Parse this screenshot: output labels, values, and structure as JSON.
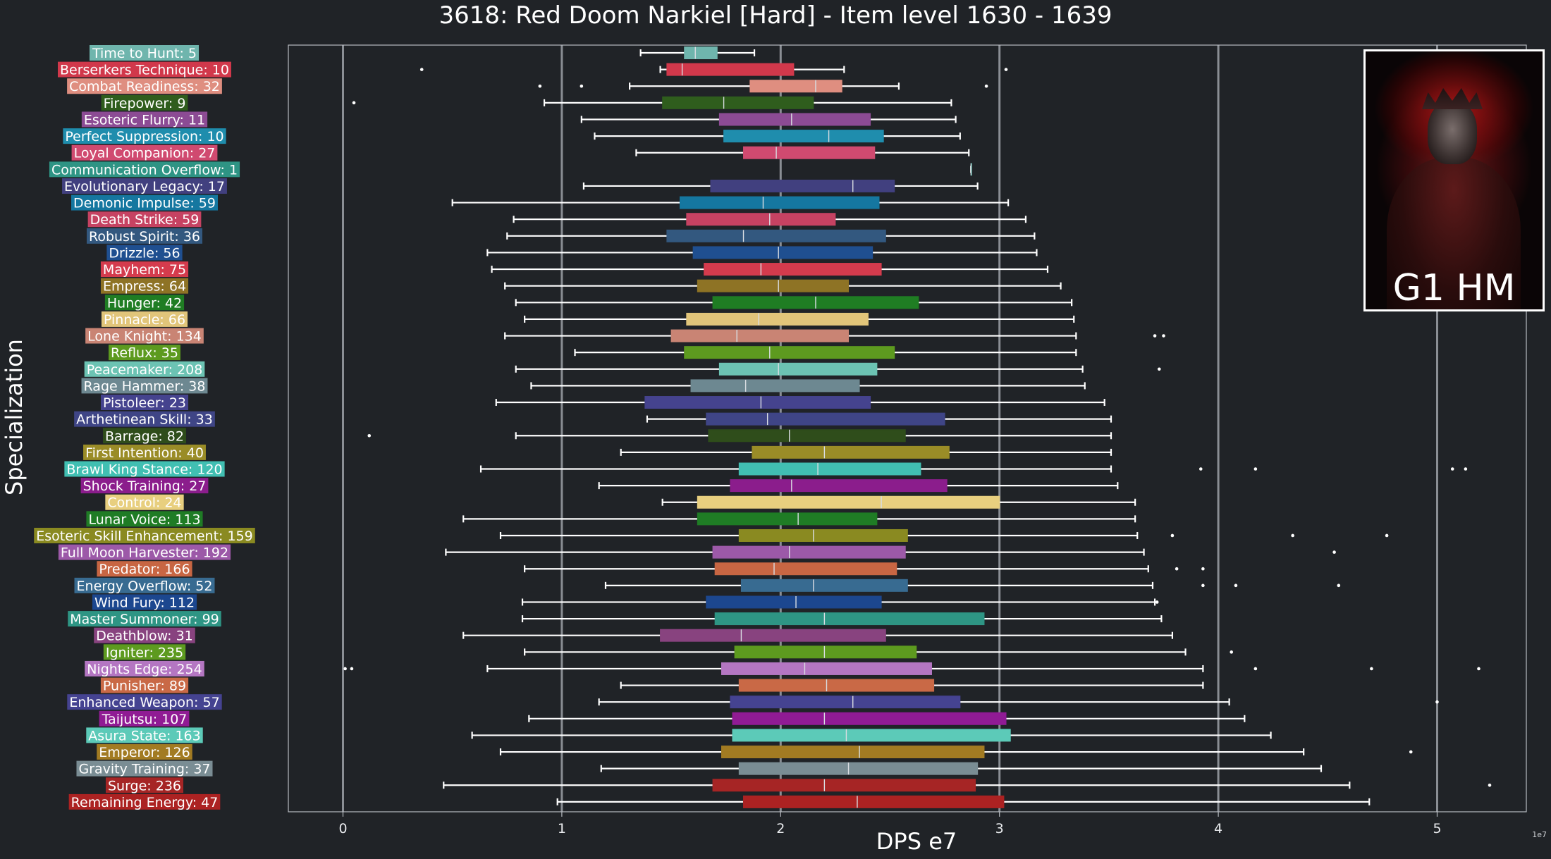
{
  "title": "3618: Red Doom Narkiel [Hard] - Item level 1630 - 1639",
  "inset": {
    "caption": "G1 HM",
    "icon": "boss-portrait-image"
  },
  "chart_data": {
    "type": "box",
    "orientation": "horizontal",
    "xlabel": "DPS e7",
    "ylabel": "Specialization",
    "x_offset_text": "1e7",
    "xlim": [
      -0.25,
      5.5
    ],
    "xticks": [
      0,
      1,
      2,
      3,
      4,
      5
    ],
    "vertical_gridlines_at": [
      0,
      1,
      2,
      3,
      4,
      5
    ],
    "colors": {
      "background": "#202327",
      "axes": "#b8bcc2",
      "whisker": "#ffffff",
      "gridline": "#8a8e94"
    },
    "series": [
      {
        "name": "Time to Hunt: 5",
        "color": "#6fb5ad",
        "whisker_low": 1.36,
        "q1": 1.56,
        "median": 1.61,
        "q3": 1.71,
        "whisker_high": 1.88,
        "outliers": []
      },
      {
        "name": "Berserkers Technique: 10",
        "color": "#d1384b",
        "whisker_low": 1.45,
        "q1": 1.48,
        "median": 1.55,
        "q3": 2.06,
        "whisker_high": 2.29,
        "outliers": [
          0.36,
          3.03
        ]
      },
      {
        "name": "Combat Readiness: 32",
        "color": "#df8e80",
        "whisker_low": 1.31,
        "q1": 1.86,
        "median": 2.16,
        "q3": 2.28,
        "whisker_high": 2.54,
        "outliers": [
          0.9,
          1.09,
          2.94
        ]
      },
      {
        "name": "Firepower: 9",
        "color": "#2f5d1d",
        "whisker_low": 0.92,
        "q1": 1.46,
        "median": 1.74,
        "q3": 2.15,
        "whisker_high": 2.78,
        "outliers": [
          0.05
        ]
      },
      {
        "name": "Esoteric Flurry: 11",
        "color": "#8c4b94",
        "whisker_low": 1.09,
        "q1": 1.72,
        "median": 2.05,
        "q3": 2.41,
        "whisker_high": 2.8,
        "outliers": []
      },
      {
        "name": "Perfect Suppression: 10",
        "color": "#1f8dad",
        "whisker_low": 1.15,
        "q1": 1.74,
        "median": 2.22,
        "q3": 2.47,
        "whisker_high": 2.82,
        "outliers": []
      },
      {
        "name": "Loyal Companion: 27",
        "color": "#d04a70",
        "whisker_low": 1.34,
        "q1": 1.83,
        "median": 1.98,
        "q3": 2.43,
        "whisker_high": 2.86,
        "outliers": []
      },
      {
        "name": "Communication Overflow: 1",
        "color": "#2e9484",
        "whisker_low": 2.87,
        "q1": 2.87,
        "median": 2.87,
        "q3": 2.87,
        "whisker_high": 2.87,
        "outliers": []
      },
      {
        "name": "Evolutionary Legacy: 17",
        "color": "#41407f",
        "whisker_low": 1.1,
        "q1": 1.68,
        "median": 2.33,
        "q3": 2.52,
        "whisker_high": 2.9,
        "outliers": []
      },
      {
        "name": "Demonic Impulse: 59",
        "color": "#1577a0",
        "whisker_low": 0.5,
        "q1": 1.54,
        "median": 1.92,
        "q3": 2.45,
        "whisker_high": 3.04,
        "outliers": []
      },
      {
        "name": "Death Strike: 59",
        "color": "#c64262",
        "whisker_low": 0.78,
        "q1": 1.57,
        "median": 1.95,
        "q3": 2.25,
        "whisker_high": 3.12,
        "outliers": []
      },
      {
        "name": "Robust Spirit: 36",
        "color": "#33587f",
        "whisker_low": 0.75,
        "q1": 1.48,
        "median": 1.83,
        "q3": 2.48,
        "whisker_high": 3.16,
        "outliers": []
      },
      {
        "name": "Drizzle: 56",
        "color": "#1f4f90",
        "whisker_low": 0.66,
        "q1": 1.6,
        "median": 1.99,
        "q3": 2.42,
        "whisker_high": 3.17,
        "outliers": []
      },
      {
        "name": "Mayhem: 75",
        "color": "#d43b4d",
        "whisker_low": 0.68,
        "q1": 1.65,
        "median": 1.91,
        "q3": 2.46,
        "whisker_high": 3.22,
        "outliers": []
      },
      {
        "name": "Empress: 64",
        "color": "#8e7325",
        "whisker_low": 0.74,
        "q1": 1.62,
        "median": 1.99,
        "q3": 2.31,
        "whisker_high": 3.28,
        "outliers": []
      },
      {
        "name": "Hunger: 42",
        "color": "#1f7d23",
        "whisker_low": 0.79,
        "q1": 1.69,
        "median": 2.16,
        "q3": 2.63,
        "whisker_high": 3.33,
        "outliers": []
      },
      {
        "name": "Pinnacle: 66",
        "color": "#e1c57a",
        "whisker_low": 0.83,
        "q1": 1.57,
        "median": 1.9,
        "q3": 2.4,
        "whisker_high": 3.34,
        "outliers": []
      },
      {
        "name": "Lone Knight: 134",
        "color": "#c98474",
        "whisker_low": 0.74,
        "q1": 1.5,
        "median": 1.8,
        "q3": 2.31,
        "whisker_high": 3.35,
        "outliers": [
          3.71,
          3.75
        ]
      },
      {
        "name": "Reflux: 35",
        "color": "#5d9a1f",
        "whisker_low": 1.06,
        "q1": 1.56,
        "median": 1.95,
        "q3": 2.52,
        "whisker_high": 3.35,
        "outliers": []
      },
      {
        "name": "Peacemaker: 208",
        "color": "#6cc3b3",
        "whisker_low": 0.79,
        "q1": 1.72,
        "median": 1.99,
        "q3": 2.44,
        "whisker_high": 3.38,
        "outliers": [
          3.73
        ]
      },
      {
        "name": "Rage Hammer: 38",
        "color": "#6d8891",
        "whisker_low": 0.86,
        "q1": 1.59,
        "median": 1.84,
        "q3": 2.36,
        "whisker_high": 3.39,
        "outliers": []
      },
      {
        "name": "Pistoleer: 23",
        "color": "#45438e",
        "whisker_low": 0.7,
        "q1": 1.38,
        "median": 1.91,
        "q3": 2.41,
        "whisker_high": 3.48,
        "outliers": []
      },
      {
        "name": "Arthetinean Skill: 33",
        "color": "#3f4586",
        "whisker_low": 1.39,
        "q1": 1.66,
        "median": 1.94,
        "q3": 2.75,
        "whisker_high": 3.51,
        "outliers": []
      },
      {
        "name": "Barrage: 82",
        "color": "#2f4d1b",
        "whisker_low": 0.79,
        "q1": 1.67,
        "median": 2.04,
        "q3": 2.57,
        "whisker_high": 3.51,
        "outliers": [
          0.12
        ]
      },
      {
        "name": "First Intention: 40",
        "color": "#9a8c27",
        "whisker_low": 1.27,
        "q1": 1.87,
        "median": 2.2,
        "q3": 2.77,
        "whisker_high": 3.51,
        "outliers": []
      },
      {
        "name": "Brawl King Stance: 120",
        "color": "#41bfb2",
        "whisker_low": 0.63,
        "q1": 1.81,
        "median": 2.17,
        "q3": 2.64,
        "whisker_high": 3.51,
        "outliers": [
          3.92,
          4.17,
          5.07,
          5.13
        ]
      },
      {
        "name": "Shock Training: 27",
        "color": "#8b1d8c",
        "whisker_low": 1.17,
        "q1": 1.77,
        "median": 2.05,
        "q3": 2.76,
        "whisker_high": 3.54,
        "outliers": []
      },
      {
        "name": "Control: 24",
        "color": "#e8cf7f",
        "whisker_low": 1.46,
        "q1": 1.62,
        "median": 2.46,
        "q3": 3.0,
        "whisker_high": 3.62,
        "outliers": []
      },
      {
        "name": "Lunar Voice: 113",
        "color": "#1f7c25",
        "whisker_low": 0.55,
        "q1": 1.62,
        "median": 2.08,
        "q3": 2.44,
        "whisker_high": 3.62,
        "outliers": []
      },
      {
        "name": "Esoteric Skill Enhancement: 159",
        "color": "#8a8a21",
        "whisker_low": 0.72,
        "q1": 1.81,
        "median": 2.15,
        "q3": 2.58,
        "whisker_high": 3.63,
        "outliers": [
          3.79,
          4.34,
          4.77
        ]
      },
      {
        "name": "Full Moon Harvester: 192",
        "color": "#9c59a8",
        "whisker_low": 0.47,
        "q1": 1.69,
        "median": 2.04,
        "q3": 2.57,
        "whisker_high": 3.66,
        "outliers": [
          4.53
        ]
      },
      {
        "name": "Predator: 166",
        "color": "#c86643",
        "whisker_low": 0.83,
        "q1": 1.7,
        "median": 1.97,
        "q3": 2.53,
        "whisker_high": 3.68,
        "outliers": [
          3.81,
          3.93
        ]
      },
      {
        "name": "Energy Overflow: 52",
        "color": "#386b91",
        "whisker_low": 1.2,
        "q1": 1.82,
        "median": 2.15,
        "q3": 2.58,
        "whisker_high": 3.7,
        "outliers": [
          3.93,
          4.08,
          4.55
        ]
      },
      {
        "name": "Wind Fury: 112",
        "color": "#1c478f",
        "whisker_low": 0.82,
        "q1": 1.66,
        "median": 2.07,
        "q3": 2.46,
        "whisker_high": 3.71,
        "outliers": [
          3.72
        ]
      },
      {
        "name": "Master Summoner: 99",
        "color": "#2e9584",
        "whisker_low": 0.82,
        "q1": 1.7,
        "median": 2.2,
        "q3": 2.93,
        "whisker_high": 3.74,
        "outliers": []
      },
      {
        "name": "Deathblow: 31",
        "color": "#88437f",
        "whisker_low": 0.55,
        "q1": 1.45,
        "median": 1.82,
        "q3": 2.48,
        "whisker_high": 3.79,
        "outliers": []
      },
      {
        "name": "Igniter: 235",
        "color": "#5d9a1f",
        "whisker_low": 0.83,
        "q1": 1.79,
        "median": 2.2,
        "q3": 2.62,
        "whisker_high": 3.85,
        "outliers": [
          4.06
        ]
      },
      {
        "name": "Nights Edge: 254",
        "color": "#b476c2",
        "whisker_low": 0.66,
        "q1": 1.73,
        "median": 2.11,
        "q3": 2.69,
        "whisker_high": 3.93,
        "outliers": [
          0.01,
          0.04,
          4.17,
          4.7,
          5.19
        ]
      },
      {
        "name": "Punisher: 89",
        "color": "#c96946",
        "whisker_low": 1.27,
        "q1": 1.81,
        "median": 2.21,
        "q3": 2.7,
        "whisker_high": 3.93,
        "outliers": []
      },
      {
        "name": "Enhanced Weapon: 57",
        "color": "#454391",
        "whisker_low": 1.17,
        "q1": 1.77,
        "median": 2.33,
        "q3": 2.82,
        "whisker_high": 4.05,
        "outliers": [
          5.0
        ]
      },
      {
        "name": "Taijutsu: 107",
        "color": "#901b94",
        "whisker_low": 0.85,
        "q1": 1.78,
        "median": 2.2,
        "q3": 3.03,
        "whisker_high": 4.12,
        "outliers": []
      },
      {
        "name": "Asura State: 163",
        "color": "#5ccab8",
        "whisker_low": 0.59,
        "q1": 1.78,
        "median": 2.3,
        "q3": 3.05,
        "whisker_high": 4.24,
        "outliers": []
      },
      {
        "name": "Emperor: 126",
        "color": "#a27b22",
        "whisker_low": 0.72,
        "q1": 1.73,
        "median": 2.36,
        "q3": 2.93,
        "whisker_high": 4.39,
        "outliers": [
          4.88
        ]
      },
      {
        "name": "Gravity Training: 37",
        "color": "#7a8d94",
        "whisker_low": 1.18,
        "q1": 1.81,
        "median": 2.31,
        "q3": 2.9,
        "whisker_high": 4.47,
        "outliers": []
      },
      {
        "name": "Surge: 236",
        "color": "#a62525",
        "whisker_low": 0.46,
        "q1": 1.69,
        "median": 2.2,
        "q3": 2.89,
        "whisker_high": 4.6,
        "outliers": [
          5.24
        ]
      },
      {
        "name": "Remaining Energy: 47",
        "color": "#ac2222",
        "whisker_low": 0.98,
        "q1": 1.83,
        "median": 2.35,
        "q3": 3.02,
        "whisker_high": 4.69,
        "outliers": []
      }
    ]
  }
}
